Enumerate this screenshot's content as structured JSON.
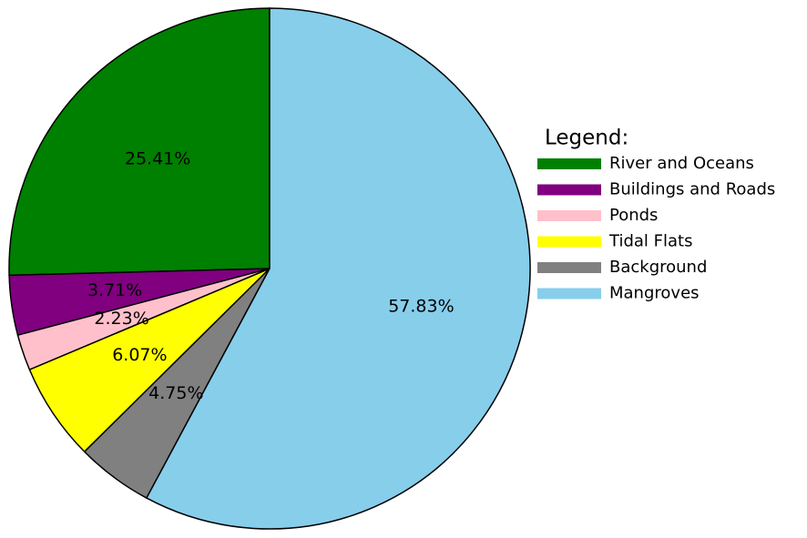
{
  "chart_data": {
    "type": "pie",
    "legend_title": "Legend:",
    "categories": [
      "River and Oceans",
      "Buildings and Roads",
      "Ponds",
      "Tidal Flats",
      "Background",
      "Mangroves"
    ],
    "values": [
      25.41,
      3.71,
      2.23,
      6.07,
      4.75,
      57.83
    ],
    "value_labels": [
      "25.41%",
      "3.71%",
      "2.23%",
      "6.07%",
      "4.75%",
      "57.83%"
    ],
    "colors": [
      "#008000",
      "#800080",
      "#ffc0cb",
      "#ffff00",
      "#808080",
      "#87ceeb"
    ],
    "legend": "right"
  }
}
